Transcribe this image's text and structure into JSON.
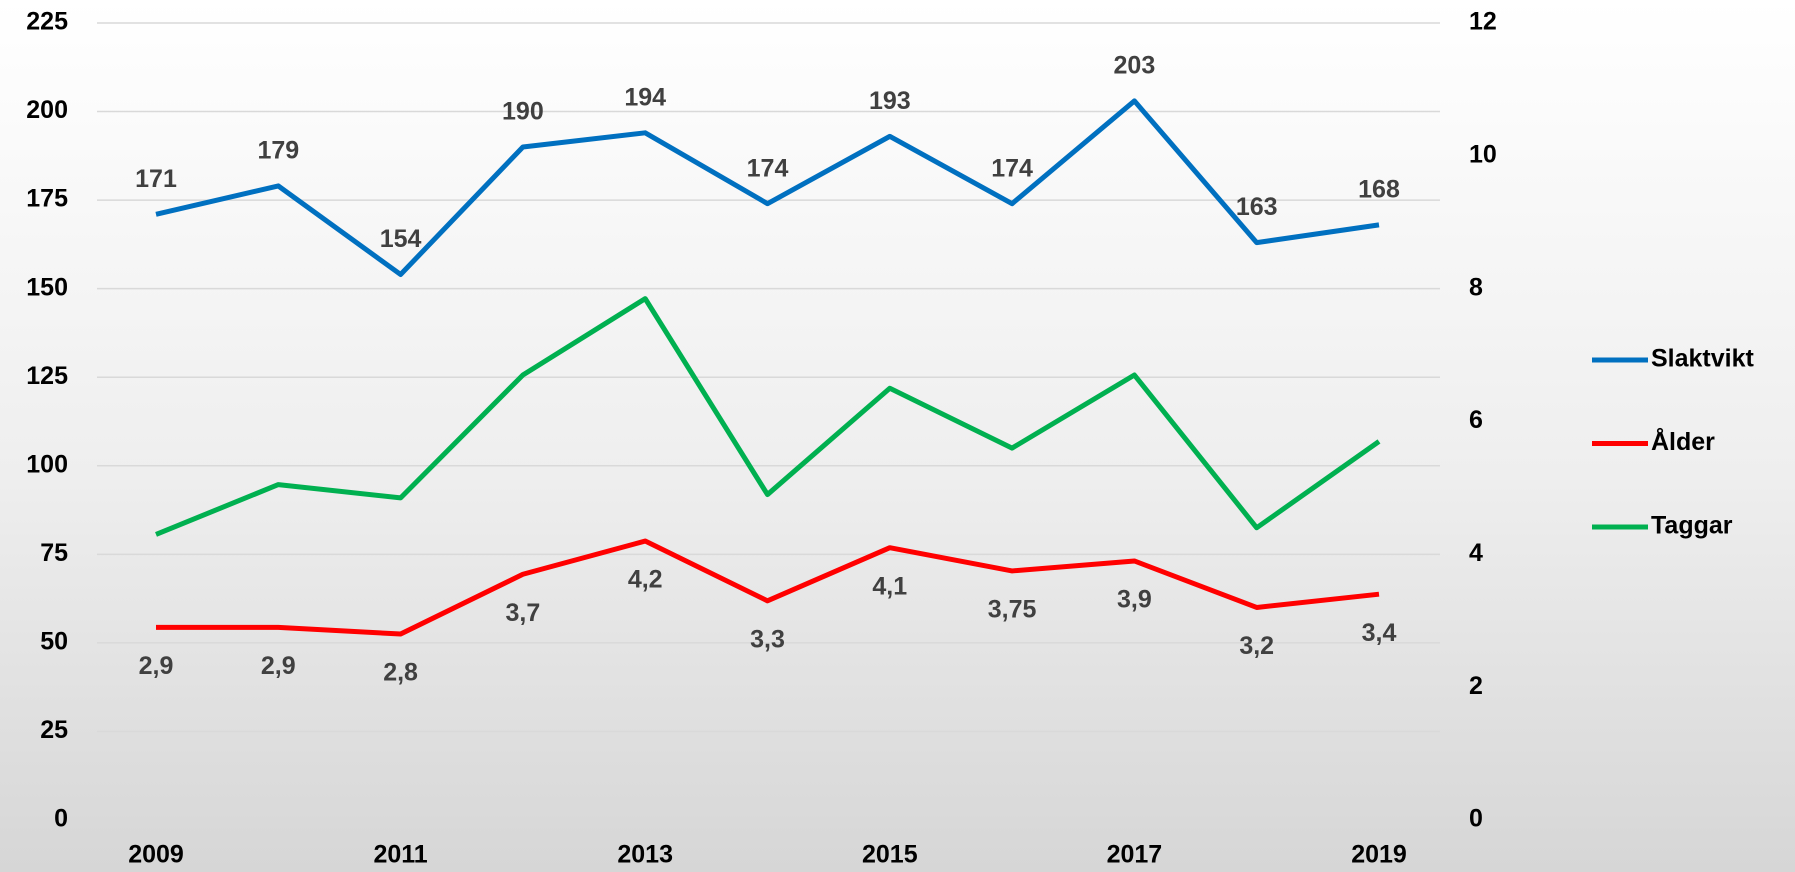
{
  "chart_data": {
    "type": "line",
    "x": [
      2009,
      2010,
      2011,
      2012,
      2013,
      2014,
      2015,
      2016,
      2017,
      2018,
      2019
    ],
    "xlim": [
      2009,
      2019
    ],
    "xticks": [
      2009,
      2011,
      2013,
      2015,
      2017,
      2019
    ],
    "ylim": [
      0,
      225
    ],
    "yticks": [
      0,
      25,
      50,
      75,
      100,
      125,
      150,
      175,
      200,
      225
    ],
    "y2lim": [
      0,
      12
    ],
    "y2ticks": [
      0,
      2,
      4,
      6,
      8,
      10,
      12
    ],
    "grid": true,
    "legend": "right",
    "series": [
      {
        "name": "Slaktvikt",
        "color": "#0070c0",
        "values": [
          171,
          179,
          154,
          190,
          194,
          174,
          193,
          174,
          203,
          163,
          168
        ]
      },
      {
        "name": "Ålder",
        "color": "#ff0000",
        "axis": "y2",
        "values": [
          2.9,
          2.9,
          2.8,
          3.7,
          4.2,
          3.3,
          4.1,
          3.75,
          3.9,
          3.2,
          3.4
        ],
        "value_labels": [
          "2,9",
          "2,9",
          "2,8",
          "3,7",
          "4,2",
          "3,3",
          "4,1",
          "3,75",
          "3,9",
          "3,2",
          "3,4"
        ]
      },
      {
        "name": "Taggar",
        "color": "#00b050",
        "axis": "y2",
        "values": [
          4.3,
          5.05,
          4.85,
          6.7,
          7.85,
          4.9,
          6.5,
          5.6,
          6.7,
          4.4,
          5.7
        ]
      }
    ]
  }
}
